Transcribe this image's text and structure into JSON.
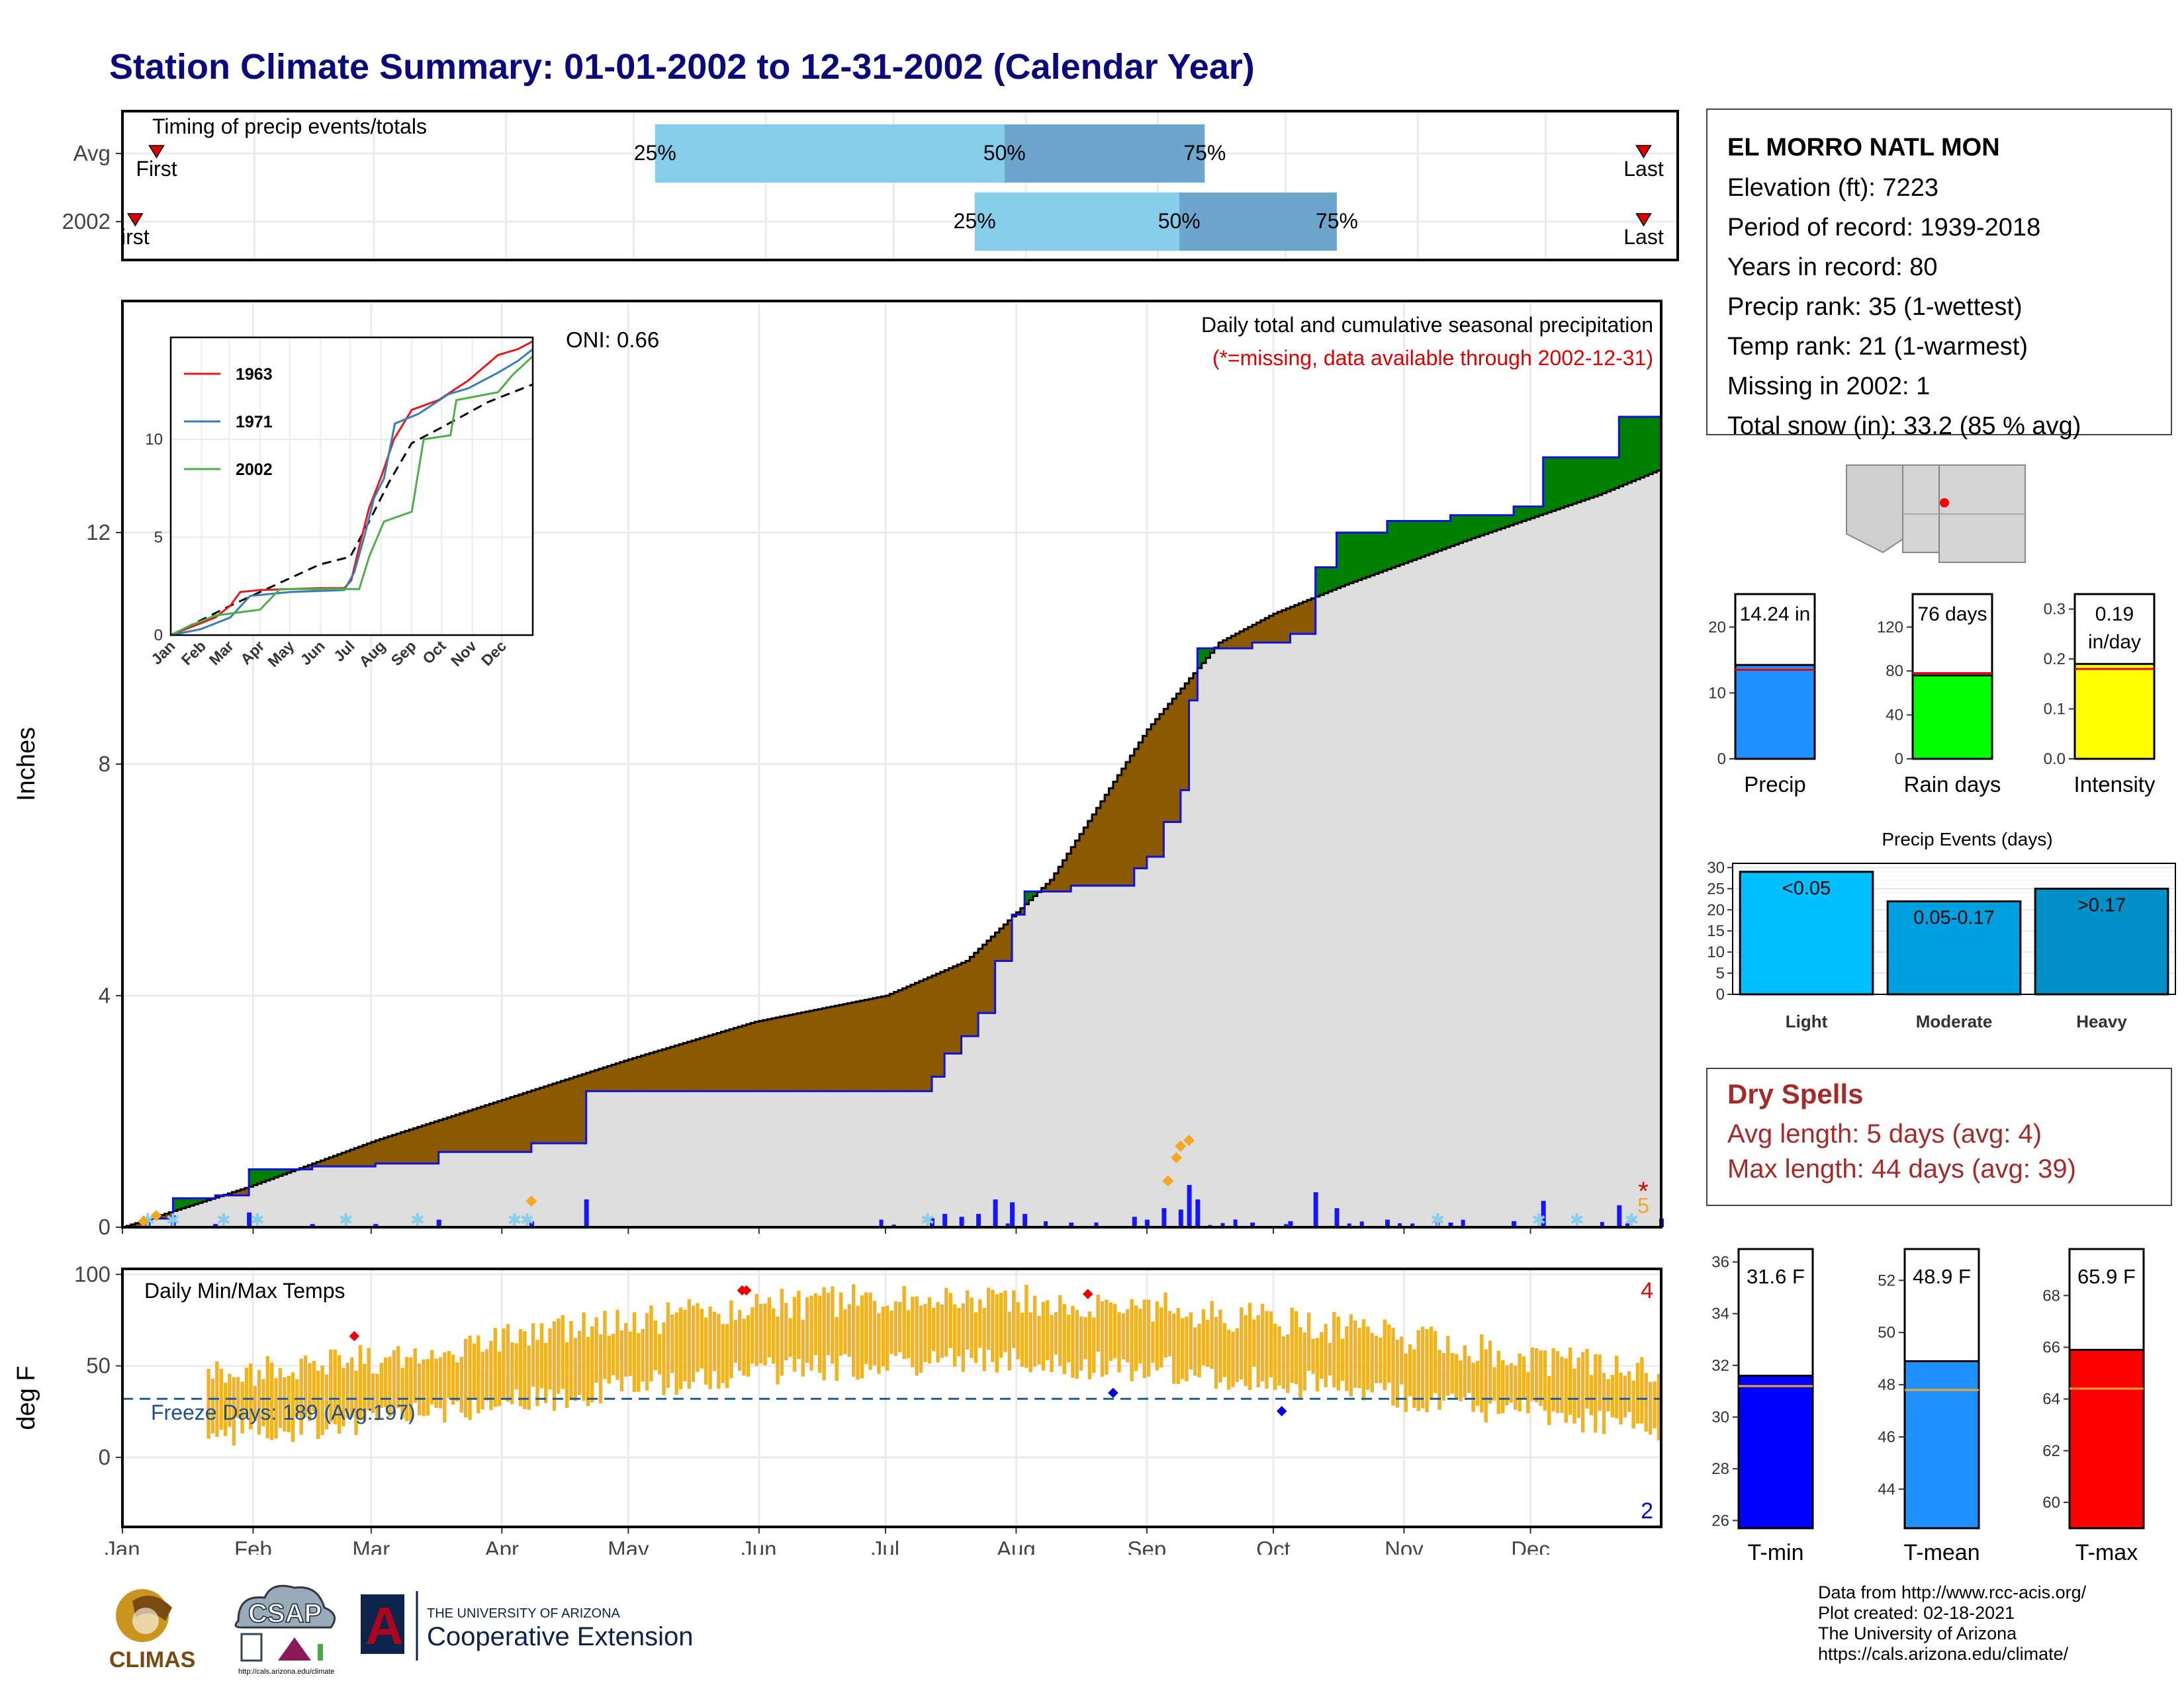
{
  "title": "Station Climate Summary: 01-01-2002 to 12-31-2002 (Calendar Year)",
  "timing": {
    "title": "Timing of precip events/totals",
    "rows": [
      {
        "label": "Avg",
        "first_label": "First",
        "last_label": "Last",
        "first_doy": 8,
        "p25_doy": 125,
        "p50_doy": 207,
        "p75_doy": 254,
        "last_doy": 357
      },
      {
        "label": "2002",
        "first_label": "irst",
        "last_label": "Last",
        "first_doy": 3,
        "p25_doy": 200,
        "p50_doy": 248,
        "p75_doy": 285,
        "last_doy": 357
      }
    ],
    "pct_labels": [
      "25%",
      "50%",
      "75%"
    ]
  },
  "precip": {
    "ylabel": "Inches",
    "subtitle": "Daily total and cumulative seasonal precipitation",
    "missing_note": "(*=missing, data available through 2002-12-31)",
    "oni": "ONI: 0.66",
    "missing_star": "*",
    "missing_count": "5",
    "yticks": [
      "0",
      "4",
      "8",
      "12"
    ],
    "colors": {
      "observed": "#1111dd",
      "above": "#008000",
      "below": "#8b5a00",
      "avg": "#000000",
      "bars": "#1515ff",
      "snow": "#87ceeb",
      "marker": "#f5a623"
    }
  },
  "inset": {
    "legend": [
      "1963",
      "1971",
      "2002"
    ],
    "legend_colors": [
      "#e41a1c",
      "#377eb8",
      "#4daf4a"
    ],
    "yticks": [
      "0",
      "5",
      "10"
    ],
    "months": [
      "Jan",
      "Feb",
      "Mar",
      "Apr",
      "May",
      "Jun",
      "Jul",
      "Aug",
      "Sep",
      "Oct",
      "Nov",
      "Dec"
    ]
  },
  "months": [
    "Jan",
    "Feb",
    "Mar",
    "Apr",
    "May",
    "Jun",
    "Jul",
    "Aug",
    "Sep",
    "Oct",
    "Nov",
    "Dec"
  ],
  "temps": {
    "ylabel": "deg F",
    "title": "Daily Min/Max Temps",
    "freeze": "Freeze Days: 189 (Avg:197)",
    "count_max": "4",
    "count_min": "2",
    "yticks": [
      "0",
      "50",
      "100"
    ]
  },
  "station": {
    "name": "EL MORRO NATL MON",
    "lines": [
      "Elevation (ft): 7223",
      "Period of record: 1939-2018",
      "Years in record: 80",
      "Precip rank: 35 (1-wettest)",
      "Temp rank: 21 (1-warmest)",
      "Missing in 2002: 1",
      "Total snow (in): 33.2 (85 % avg)"
    ]
  },
  "summary_bars": [
    {
      "label": "Precip",
      "value_text": "14.24 in",
      "value": 14.24,
      "avg": 13.5,
      "ymax": 25,
      "ticks": [
        "0",
        "10",
        "20"
      ],
      "tickvals": [
        0,
        10,
        20
      ],
      "color": "#1e90ff"
    },
    {
      "label": "Rain days",
      "value_text": "76 days",
      "value": 76,
      "avg": 78,
      "ymax": 150,
      "ticks": [
        "0",
        "40",
        "80",
        "120"
      ],
      "tickvals": [
        0,
        40,
        80,
        120
      ],
      "color": "#00ff00"
    },
    {
      "label": "Intensity",
      "value_text": "0.19",
      "value_text2": "in/day",
      "value": 0.19,
      "avg": 0.18,
      "ymax": 0.33,
      "ticks": [
        "0.0",
        "0.1",
        "0.2",
        "0.3"
      ],
      "tickvals": [
        0,
        0.1,
        0.2,
        0.3
      ],
      "color": "#ffff00"
    }
  ],
  "events": {
    "title": "Precip Events (days)",
    "categories": [
      "Light",
      "Moderate",
      "Heavy"
    ],
    "bar_labels": [
      "<0.05",
      "0.05-0.17",
      ">0.17"
    ],
    "values": [
      29,
      22,
      25
    ],
    "colors": [
      "#00bfff",
      "#009fdf",
      "#0090c8"
    ],
    "yticks": [
      "0",
      "5",
      "10",
      "15",
      "20",
      "25",
      "30"
    ]
  },
  "dry": {
    "title": "Dry Spells",
    "avg": "Avg length: 5 days (avg: 4)",
    "max": "Max length: 44 days (avg: 39)"
  },
  "temp_bars": [
    {
      "label": "T-min",
      "value_text": "31.6 F",
      "value": 31.6,
      "avg": 31.2,
      "ymin": 25.7,
      "ymax": 36.5,
      "ticks": [
        "26",
        "28",
        "30",
        "32",
        "34",
        "36"
      ],
      "tickvals": [
        26,
        28,
        30,
        32,
        34,
        36
      ],
      "color": "#0000ff"
    },
    {
      "label": "T-mean",
      "value_text": "48.9 F",
      "value": 48.9,
      "avg": 47.8,
      "ymin": 42.5,
      "ymax": 53.2,
      "ticks": [
        "44",
        "46",
        "48",
        "50",
        "52"
      ],
      "tickvals": [
        44,
        46,
        48,
        50,
        52
      ],
      "color": "#1e90ff"
    },
    {
      "label": "T-max",
      "value_text": "65.9 F",
      "value": 65.9,
      "avg": 64.4,
      "ymin": 59.0,
      "ymax": 69.8,
      "ticks": [
        "60",
        "62",
        "64",
        "66",
        "68"
      ],
      "tickvals": [
        60,
        62,
        64,
        66,
        68
      ],
      "color": "#ff0000"
    }
  ],
  "credits": [
    "Data from http://www.rcc-acis.org/",
    "Plot created: 02-18-2021",
    "The University of Arizona",
    "https://cals.arizona.edu/climate/"
  ],
  "logos": {
    "climas": "CLIMAS",
    "csap": "CSAP",
    "csap_url": "http://cals.arizona.edu/climate",
    "ua_small": "THE UNIVERSITY OF ARIZONA",
    "ua_big": "Cooperative Extension",
    "ua_letter": "A"
  }
}
